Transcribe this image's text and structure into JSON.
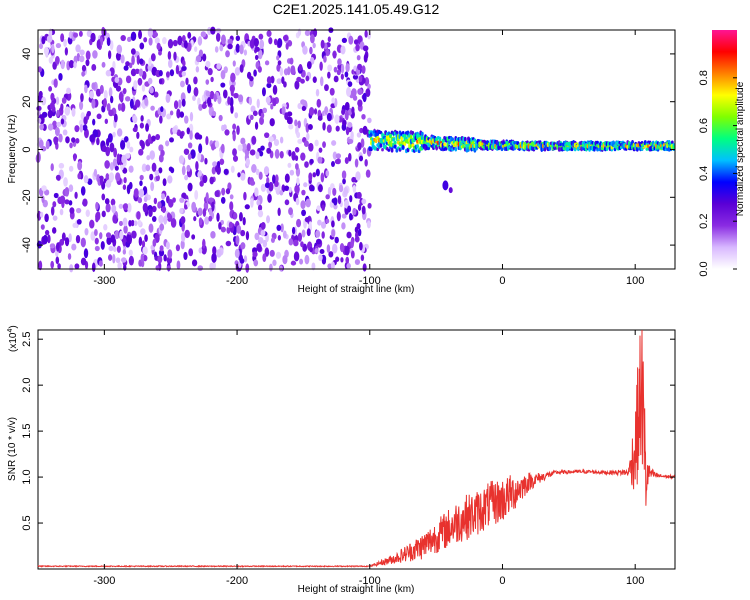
{
  "figure": {
    "title": "C2E1.2025.141.05.49.G12"
  },
  "chart_data": [
    {
      "type": "heatmap",
      "xlabel": "Height of straight line (km)",
      "ylabel": "Frequency (Hz)",
      "xlim": [
        -350,
        130
      ],
      "ylim": [
        -50,
        50
      ],
      "xticks": [
        -300,
        -200,
        -100,
        0,
        100
      ],
      "yticks": [
        -40,
        -20,
        0,
        20,
        40
      ],
      "colorbar": {
        "label": "Normalized spectral amplitude",
        "ticks": [
          0.0,
          0.2,
          0.4,
          0.6,
          0.8
        ],
        "range": [
          0,
          1
        ],
        "colormap": [
          "#ffffff",
          "#d8b8ff",
          "#8a2be2",
          "#5a00d6",
          "#0000ff",
          "#00c0ff",
          "#00ff80",
          "#80ff00",
          "#ffff00",
          "#ff8000",
          "#ff0000",
          "#ff1493"
        ]
      },
      "regions": [
        {
          "name": "noise",
          "x_range": [
            -350,
            -100
          ],
          "freq_range": [
            -50,
            50
          ],
          "amplitude": [
            0.05,
            0.3
          ]
        },
        {
          "name": "signal",
          "x_range": [
            -100,
            130
          ],
          "center_freq": [
            4,
            3,
            2,
            1.5,
            1.5,
            1.5
          ],
          "center_x": [
            -100,
            -60,
            -20,
            20,
            60,
            130
          ],
          "peak_amplitude": 0.9
        }
      ],
      "annotations": [
        {
          "x": -43,
          "y": -15,
          "note": "isolated blob"
        }
      ]
    },
    {
      "type": "line",
      "xlabel": "Height of straight line (km)",
      "ylabel": "SNR (10 * v/v)",
      "yscale_label": "(x10",
      "yscale_exp": "4",
      "yscale_close": ")",
      "xlim": [
        -350,
        130
      ],
      "ylim": [
        0,
        2.6
      ],
      "xticks": [
        -300,
        -200,
        -100,
        0,
        100
      ],
      "yticks": [
        0.5,
        1.0,
        1.5,
        2.0,
        2.5
      ],
      "series": [
        {
          "color": "#e8322e",
          "x": [
            -350,
            -300,
            -250,
            -200,
            -150,
            -100,
            -80,
            -60,
            -50,
            -40,
            -30,
            -20,
            -10,
            0,
            10,
            20,
            30,
            40,
            60,
            80,
            95,
            100,
            105,
            108,
            110,
            115,
            120,
            130
          ],
          "y": [
            0.03,
            0.03,
            0.03,
            0.03,
            0.03,
            0.03,
            0.12,
            0.25,
            0.35,
            0.45,
            0.55,
            0.6,
            0.7,
            0.75,
            0.85,
            0.95,
            1.0,
            1.05,
            1.06,
            1.05,
            1.05,
            1.3,
            2.0,
            1.0,
            1.05,
            1.02,
            1.01,
            1.0
          ],
          "noise": [
            0.005,
            0.005,
            0.005,
            0.005,
            0.005,
            0.005,
            0.06,
            0.15,
            0.18,
            0.22,
            0.25,
            0.25,
            0.25,
            0.25,
            0.2,
            0.1,
            0.05,
            0.02,
            0.02,
            0.02,
            0.04,
            0.5,
            0.9,
            0.5,
            0.1,
            0.03,
            0.02,
            0.02
          ]
        }
      ]
    }
  ]
}
